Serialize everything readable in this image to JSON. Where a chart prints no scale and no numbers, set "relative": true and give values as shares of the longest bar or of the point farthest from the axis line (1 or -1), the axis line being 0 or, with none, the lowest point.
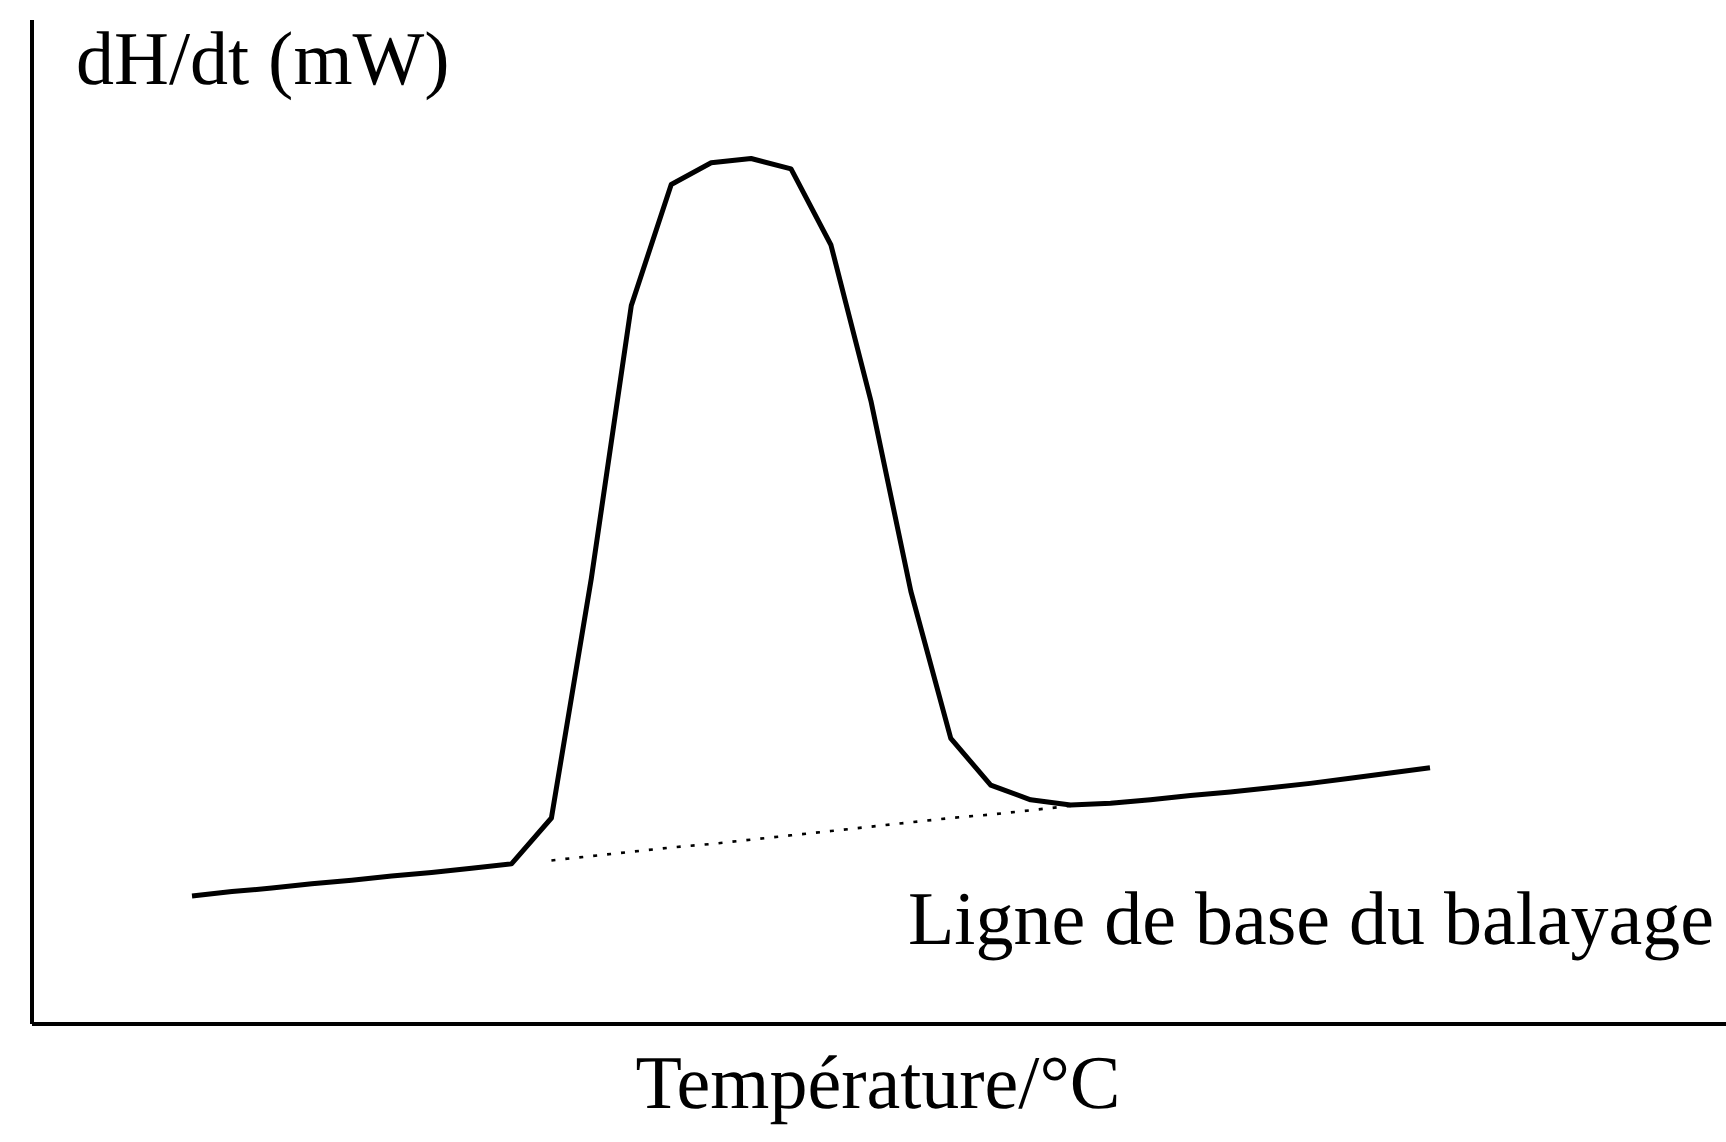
{
  "chart_data": {
    "type": "line",
    "relative": true,
    "xlabel": "Température/°C",
    "ylabel": "dH/dt (mW)",
    "annotations": [
      "Ligne de base du balayage"
    ],
    "categories": [
      null,
      null,
      null,
      null,
      null,
      null,
      null,
      null,
      null,
      null,
      null,
      null,
      null,
      null,
      null,
      null,
      null,
      null,
      null,
      null,
      null,
      null,
      null,
      null,
      null,
      null,
      null,
      null,
      null,
      null,
      null,
      null
    ],
    "series": [
      {
        "color": "#000000",
        "line_style": "solid",
        "values": [
          0.148,
          0.153,
          0.157,
          0.162,
          0.166,
          0.171,
          0.175,
          0.18,
          0.185,
          0.238,
          0.515,
          0.83,
          0.97,
          0.995,
          1,
          0.988,
          0.9,
          0.72,
          0.5,
          0.33,
          0.276,
          0.259,
          0.253,
          0.255,
          0.259,
          0.264,
          0.268,
          0.273,
          0.278,
          0.284,
          0.29,
          0.296
        ]
      },
      {
        "color": "#000000",
        "line_style": "dotted",
        "values": [
          null,
          null,
          null,
          null,
          null,
          null,
          null,
          null,
          null,
          0.189,
          0.194,
          0.199,
          0.204,
          0.208,
          0.213,
          0.218,
          0.223,
          0.228,
          0.233,
          0.238,
          0.242,
          0.247,
          0.252,
          null,
          null,
          null,
          null,
          null,
          null,
          null,
          null,
          null
        ]
      }
    ]
  }
}
